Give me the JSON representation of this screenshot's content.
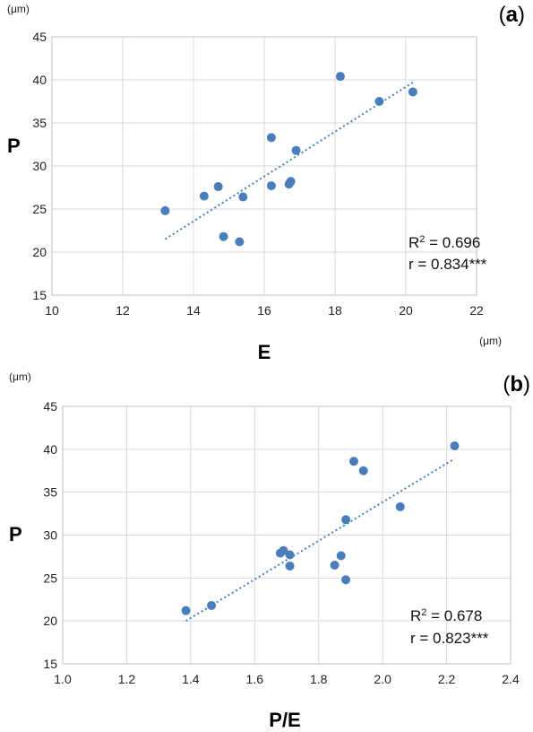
{
  "chart_data": [
    {
      "type": "scatter",
      "panel_label": "(a)",
      "xlabel": "E",
      "ylabel": "P",
      "x_unit": "(μm)",
      "y_unit": "(μm)",
      "xlim": [
        10,
        22
      ],
      "ylim": [
        15,
        45
      ],
      "xticks": [
        10,
        12,
        14,
        16,
        18,
        20,
        22
      ],
      "yticks": [
        15,
        20,
        25,
        30,
        35,
        40,
        45
      ],
      "grid": true,
      "r2_text": "0.696",
      "r_text": "r = 0.834***",
      "trendline": {
        "x": [
          13.2,
          20.2
        ],
        "y": [
          21.5,
          39.7
        ]
      },
      "points": [
        {
          "x": 13.2,
          "y": 24.8
        },
        {
          "x": 14.3,
          "y": 26.5
        },
        {
          "x": 14.7,
          "y": 27.6
        },
        {
          "x": 14.85,
          "y": 21.8
        },
        {
          "x": 15.3,
          "y": 21.2
        },
        {
          "x": 15.4,
          "y": 26.4
        },
        {
          "x": 16.2,
          "y": 27.7
        },
        {
          "x": 16.2,
          "y": 33.3
        },
        {
          "x": 16.7,
          "y": 27.9
        },
        {
          "x": 16.75,
          "y": 28.2
        },
        {
          "x": 16.9,
          "y": 31.8
        },
        {
          "x": 18.15,
          "y": 40.4
        },
        {
          "x": 19.25,
          "y": 37.5
        },
        {
          "x": 20.2,
          "y": 38.6
        }
      ]
    },
    {
      "type": "scatter",
      "panel_label": "(b)",
      "xlabel": "P/E",
      "ylabel": "P",
      "y_unit": "(μm)",
      "xlim": [
        1.0,
        2.4
      ],
      "ylim": [
        15,
        45
      ],
      "xticks": [
        "1.0",
        "1.2",
        "1.4",
        "1.6",
        "1.8",
        "2.0",
        "2.2",
        "2.4"
      ],
      "yticks": [
        15,
        20,
        25,
        30,
        35,
        40,
        45
      ],
      "grid": true,
      "r2_text": "0.678",
      "r_text": "r = 0.823***",
      "trendline": {
        "x": [
          1.385,
          2.225
        ],
        "y": [
          20.0,
          38.9
        ]
      },
      "points": [
        {
          "x": 1.385,
          "y": 21.2
        },
        {
          "x": 1.465,
          "y": 21.8
        },
        {
          "x": 1.68,
          "y": 27.9
        },
        {
          "x": 1.69,
          "y": 28.2
        },
        {
          "x": 1.71,
          "y": 27.7
        },
        {
          "x": 1.71,
          "y": 26.4
        },
        {
          "x": 1.85,
          "y": 26.5
        },
        {
          "x": 1.87,
          "y": 27.6
        },
        {
          "x": 1.885,
          "y": 24.8
        },
        {
          "x": 1.885,
          "y": 31.8
        },
        {
          "x": 1.91,
          "y": 38.6
        },
        {
          "x": 1.94,
          "y": 37.5
        },
        {
          "x": 2.055,
          "y": 33.3
        },
        {
          "x": 2.225,
          "y": 40.4
        }
      ]
    }
  ]
}
